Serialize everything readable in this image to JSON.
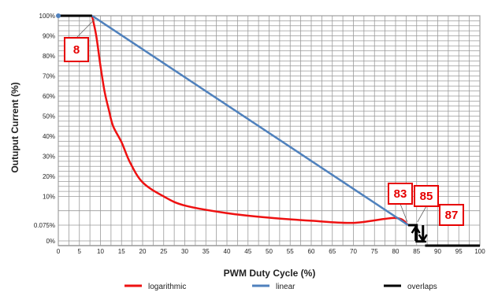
{
  "chart_data": {
    "type": "line",
    "title": "",
    "xlabel": "PWM Duty Cycle (%)",
    "ylabel": "Outuput Current (%)",
    "xlim": [
      0,
      100
    ],
    "x_ticks": [
      0,
      5,
      10,
      15,
      20,
      25,
      30,
      35,
      40,
      45,
      50,
      55,
      60,
      65,
      70,
      75,
      80,
      85,
      90,
      95,
      100
    ],
    "y_ticks": [
      "0%",
      "0.075%",
      "10%",
      "20%",
      "30%",
      "40%",
      "50%",
      "60%",
      "70%",
      "80%",
      "90%",
      "100%"
    ],
    "grid": true,
    "legend_position": "bottom",
    "series": [
      {
        "name": "logarithmic",
        "color": "#ee1111",
        "points": [
          [
            8,
            100
          ],
          [
            9,
            90
          ],
          [
            10,
            75
          ],
          [
            11,
            62
          ],
          [
            12,
            53
          ],
          [
            13,
            45
          ],
          [
            15,
            37
          ],
          [
            17,
            27
          ],
          [
            20,
            17
          ],
          [
            25,
            10
          ],
          [
            30,
            7
          ],
          [
            40,
            4.5
          ],
          [
            50,
            3
          ],
          [
            60,
            2
          ],
          [
            70,
            1.3
          ],
          [
            80,
            0.8
          ],
          [
            83,
            0.55
          ]
        ]
      },
      {
        "name": "linear",
        "color": "#4f81bd",
        "points": [
          [
            8,
            100
          ],
          [
            83,
            0.55
          ]
        ]
      },
      {
        "name": "overlaps",
        "color": "#000000",
        "segments": [
          [
            [
              0,
              100
            ],
            [
              8,
              100
            ]
          ],
          [
            [
              83,
              0.55
            ],
            [
              85,
              0.55
            ],
            [
              85,
              -0.55
            ],
            [
              87,
              -0.55
            ],
            [
              87,
              0
            ]
          ],
          [
            [
              87,
              -5
            ],
            [
              100,
              -5
            ]
          ]
        ]
      }
    ],
    "annotations": [
      {
        "text": "8",
        "x": 8,
        "y": 100
      },
      {
        "text": "83",
        "x": 83,
        "y": 0.55
      },
      {
        "text": "85",
        "x": 85,
        "y": 0.55
      },
      {
        "text": "87",
        "x": 87,
        "y": 0
      }
    ]
  }
}
